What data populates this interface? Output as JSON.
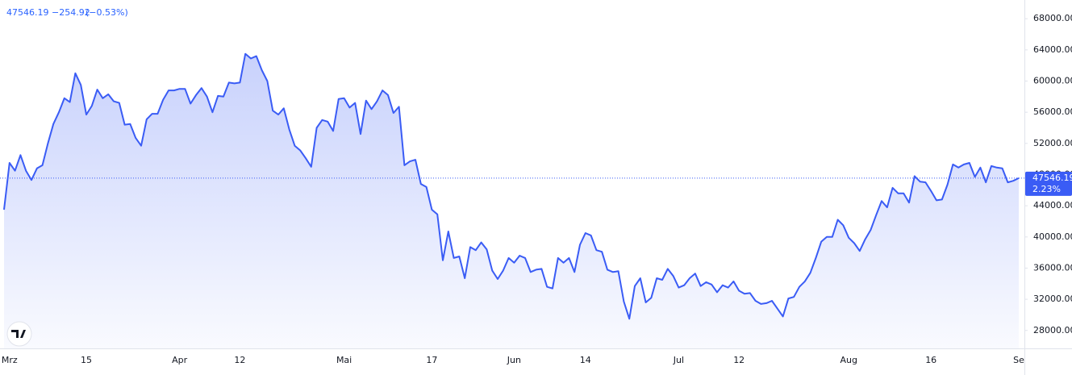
{
  "chart_data": {
    "type": "area",
    "header": {
      "change": "−254.92",
      "change_pct": "(−0.53%)"
    },
    "last_price": 47546.19,
    "last_change_pct": "2.23%",
    "color": "#3a5cf5",
    "categories": [
      null,
      "Mrz",
      null,
      null,
      null,
      null,
      null,
      null,
      null,
      null,
      null,
      null,
      null,
      null,
      null,
      "15",
      null,
      null,
      null,
      null,
      null,
      null,
      null,
      null,
      null,
      null,
      null,
      null,
      null,
      null,
      null,
      null,
      "Apr",
      null,
      null,
      null,
      null,
      null,
      null,
      null,
      null,
      null,
      null,
      "12",
      null,
      null,
      null,
      null,
      null,
      null,
      null,
      null,
      null,
      null,
      null,
      null,
      null,
      null,
      null,
      null,
      null,
      null,
      "Mai",
      null,
      null,
      null,
      null,
      null,
      null,
      null,
      null,
      null,
      null,
      null,
      null,
      null,
      null,
      null,
      "17",
      null,
      null,
      null,
      null,
      null,
      null,
      null,
      null,
      null,
      null,
      null,
      null,
      null,
      null,
      "Jun",
      null,
      null,
      null,
      null,
      null,
      null,
      null,
      null,
      null,
      null,
      null,
      null,
      "14",
      null,
      null,
      null,
      null,
      null,
      null,
      null,
      null,
      null,
      null,
      null,
      null,
      null,
      null,
      null,
      null,
      "Jul",
      null,
      null,
      null,
      null,
      null,
      null,
      null,
      null,
      null,
      null,
      "12",
      null,
      null,
      null,
      null,
      null,
      null,
      null,
      null,
      null,
      null,
      null,
      null,
      null,
      null,
      null,
      null,
      null,
      null,
      null,
      "Aug",
      null,
      null,
      null,
      null,
      null,
      null,
      null,
      null,
      null,
      null,
      null,
      null,
      null,
      null,
      "16",
      null,
      null,
      null,
      null,
      null,
      null,
      null,
      null,
      null,
      null,
      null,
      null,
      null,
      null,
      null,
      "Se"
    ],
    "values": [
      43500,
      49500,
      48500,
      50500,
      48500,
      47300,
      48800,
      49200,
      52000,
      54500,
      56000,
      57800,
      57300,
      61000,
      59500,
      55700,
      56800,
      58900,
      57800,
      58300,
      57400,
      57200,
      54400,
      54500,
      52700,
      51700,
      55100,
      55800,
      55800,
      57600,
      58800,
      58800,
      59000,
      59000,
      57100,
      58200,
      59100,
      58000,
      56000,
      58100,
      58000,
      59800,
      59700,
      59800,
      63500,
      62900,
      63200,
      61400,
      60000,
      56200,
      55700,
      56500,
      53800,
      51700,
      51100,
      50100,
      49000,
      54000,
      55000,
      54800,
      53600,
      57700,
      57800,
      56600,
      57200,
      53200,
      57500,
      56400,
      57400,
      58800,
      58200,
      55900,
      56700,
      49200,
      49700,
      49900,
      46800,
      46400,
      43500,
      42900,
      37000,
      40700,
      37300,
      37500,
      34700,
      38700,
      38300,
      39300,
      38400,
      35700,
      34600,
      35700,
      37300,
      36700,
      37600,
      37300,
      35500,
      35800,
      35900,
      33600,
      33400,
      37300,
      36700,
      37300,
      35500,
      39000,
      40500,
      40200,
      38300,
      38100,
      35800,
      35500,
      35600,
      31700,
      29500,
      33700,
      34700,
      31600,
      32200,
      34700,
      34500,
      35900,
      35000,
      33500,
      33800,
      34700,
      35300,
      33700,
      34200,
      33900,
      32900,
      33800,
      33500,
      34300,
      33100,
      32700,
      32800,
      31800,
      31400,
      31500,
      31800,
      30800,
      29800,
      32100,
      32300,
      33600,
      34300,
      35400,
      37300,
      39400,
      40000,
      40000,
      42200,
      41500,
      39900,
      39200,
      38200,
      39700,
      40900,
      42800,
      44600,
      43800,
      46300,
      45600,
      45600,
      44400,
      47800,
      47100,
      47000,
      45900,
      44700,
      44800,
      46700,
      49300,
      48900,
      49300,
      49500,
      47700,
      48900,
      47000,
      49100,
      48900,
      48800,
      47000,
      47200,
      47546.19
    ],
    "ylim": [
      25700,
      70400
    ],
    "yticks": [
      {
        "value": 28000,
        "label": "28000.00"
      },
      {
        "value": 32000,
        "label": "32000.00"
      },
      {
        "value": 36000,
        "label": "36000.00"
      },
      {
        "value": 40000,
        "label": "40000.00"
      },
      {
        "value": 44000,
        "label": "44000.00"
      },
      {
        "value": 48000,
        "label": "48000.00"
      },
      {
        "value": 52000,
        "label": "52000.00"
      },
      {
        "value": 56000,
        "label": "56000.00"
      },
      {
        "value": 60000,
        "label": "60000.00"
      },
      {
        "value": 64000,
        "label": "64000.00"
      },
      {
        "value": 68000,
        "label": "68000.00"
      }
    ],
    "grid": false
  }
}
